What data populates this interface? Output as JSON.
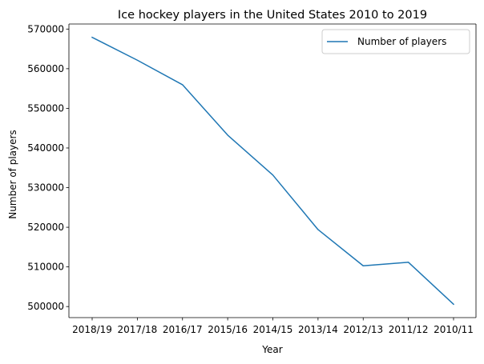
{
  "chart_data": {
    "type": "line",
    "title": "Ice hockey players in the United States 2010 to 2019",
    "xlabel": "Year",
    "ylabel": "Number of players",
    "categories": [
      "2018/19",
      "2017/18",
      "2016/17",
      "2015/16",
      "2014/15",
      "2013/14",
      "2012/13",
      "2011/12",
      "2010/11"
    ],
    "series": [
      {
        "name": "Number of players",
        "color": "#1f77b4",
        "values": [
          567908,
          562145,
          555956,
          543239,
          533172,
          519417,
          510279,
          511178,
          500579
        ]
      }
    ],
    "yticks": [
      500000,
      510000,
      520000,
      530000,
      540000,
      550000,
      560000,
      570000
    ],
    "ylim": [
      497213,
      571274
    ],
    "grid": false,
    "legend_position": "top-right"
  }
}
